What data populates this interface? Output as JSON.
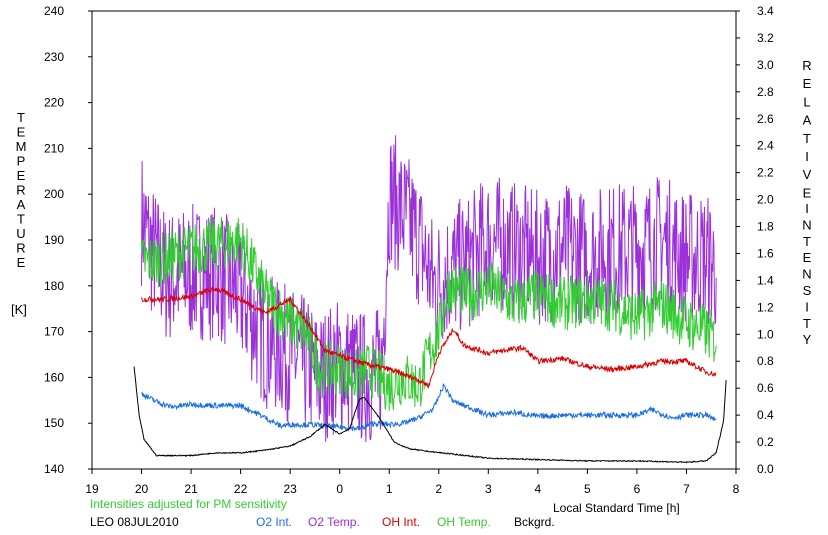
{
  "chart_data": {
    "type": "line",
    "title": "",
    "left_axis": {
      "label_letters": [
        "T",
        "E",
        "M",
        "P",
        "E",
        "R",
        "A",
        "T",
        "U",
        "R",
        "E"
      ],
      "unit": "[K]",
      "ylim": [
        140,
        240
      ],
      "ticks": [
        140,
        150,
        160,
        170,
        180,
        190,
        200,
        210,
        220,
        230,
        240
      ]
    },
    "right_axis": {
      "label_top_letters": [
        "R",
        "E",
        "L",
        "A",
        "T",
        "I",
        "V",
        "E"
      ],
      "label_bottom_letters": [
        "I",
        "N",
        "T",
        "E",
        "N",
        "S",
        "I",
        "T",
        "Y"
      ],
      "ylim": [
        0.0,
        3.4
      ],
      "ticks": [
        "0.0",
        "0.2",
        "0.4",
        "0.6",
        "0.8",
        "1.0",
        "1.2",
        "1.4",
        "1.6",
        "1.8",
        "2.0",
        "2.2",
        "2.4",
        "2.6",
        "2.8",
        "3.0",
        "3.2",
        "3.4"
      ]
    },
    "x_axis": {
      "label": "Local Standard Time [h]",
      "range": [
        19,
        32
      ],
      "ticks": [
        19,
        20,
        21,
        22,
        23,
        24,
        25,
        26,
        27,
        28,
        29,
        30,
        31,
        32
      ],
      "tick_labels": [
        "19",
        "20",
        "21",
        "22",
        "23",
        "0",
        "1",
        "2",
        "3",
        "4",
        "5",
        "6",
        "7",
        "8"
      ]
    },
    "note": "Intensities adjusted for PM sensitivity",
    "station": "LEO 08JUL2010",
    "series": [
      {
        "name": "O2 Int.",
        "axis": "right",
        "color": "#1a6fdf",
        "noise": 0.02,
        "points": [
          [
            20.0,
            0.56
          ],
          [
            20.3,
            0.5
          ],
          [
            20.6,
            0.46
          ],
          [
            21.0,
            0.48
          ],
          [
            21.5,
            0.47
          ],
          [
            22.0,
            0.47
          ],
          [
            22.4,
            0.4
          ],
          [
            22.8,
            0.32
          ],
          [
            23.0,
            0.33
          ],
          [
            23.4,
            0.33
          ],
          [
            23.7,
            0.32
          ],
          [
            24.0,
            0.31
          ],
          [
            24.4,
            0.3
          ],
          [
            24.7,
            0.34
          ],
          [
            25.0,
            0.33
          ],
          [
            25.3,
            0.34
          ],
          [
            25.6,
            0.38
          ],
          [
            25.9,
            0.45
          ],
          [
            26.1,
            0.62
          ],
          [
            26.3,
            0.5
          ],
          [
            26.6,
            0.46
          ],
          [
            27.0,
            0.4
          ],
          [
            27.5,
            0.42
          ],
          [
            28.0,
            0.39
          ],
          [
            28.5,
            0.4
          ],
          [
            29.0,
            0.4
          ],
          [
            29.5,
            0.4
          ],
          [
            30.0,
            0.4
          ],
          [
            30.3,
            0.44
          ],
          [
            30.7,
            0.38
          ],
          [
            31.0,
            0.4
          ],
          [
            31.4,
            0.4
          ],
          [
            31.6,
            0.36
          ]
        ]
      },
      {
        "name": "O2 Temp.",
        "axis": "left",
        "color": "#9b30d9",
        "noise": 15,
        "points": [
          [
            20.0,
            195
          ],
          [
            20.2,
            188
          ],
          [
            20.5,
            182
          ],
          [
            21.0,
            183
          ],
          [
            21.5,
            183
          ],
          [
            22.0,
            178
          ],
          [
            22.5,
            168
          ],
          [
            23.0,
            165
          ],
          [
            23.3,
            163
          ],
          [
            23.6,
            160
          ],
          [
            24.0,
            163
          ],
          [
            24.4,
            160
          ],
          [
            24.7,
            160
          ],
          [
            24.85,
            162
          ],
          [
            25.0,
            200
          ],
          [
            25.2,
            197
          ],
          [
            25.6,
            190
          ],
          [
            25.9,
            180
          ],
          [
            26.2,
            183
          ],
          [
            26.6,
            185
          ],
          [
            27.0,
            190
          ],
          [
            27.5,
            188
          ],
          [
            28.0,
            186
          ],
          [
            28.5,
            188
          ],
          [
            29.0,
            186
          ],
          [
            29.5,
            188
          ],
          [
            30.0,
            188
          ],
          [
            30.5,
            190
          ],
          [
            31.0,
            186
          ],
          [
            31.4,
            186
          ],
          [
            31.6,
            184
          ]
        ]
      },
      {
        "name": "OH Int.",
        "axis": "right",
        "color": "#dd0000",
        "noise": 0.02,
        "points": [
          [
            20.0,
            1.26
          ],
          [
            20.5,
            1.26
          ],
          [
            21.0,
            1.28
          ],
          [
            21.5,
            1.34
          ],
          [
            22.0,
            1.26
          ],
          [
            22.5,
            1.16
          ],
          [
            23.0,
            1.26
          ],
          [
            23.4,
            1.06
          ],
          [
            23.7,
            0.88
          ],
          [
            24.0,
            0.84
          ],
          [
            24.5,
            0.78
          ],
          [
            25.0,
            0.74
          ],
          [
            25.3,
            0.7
          ],
          [
            25.6,
            0.66
          ],
          [
            25.8,
            0.62
          ],
          [
            26.0,
            0.86
          ],
          [
            26.3,
            1.04
          ],
          [
            26.5,
            0.92
          ],
          [
            27.0,
            0.86
          ],
          [
            27.3,
            0.88
          ],
          [
            27.7,
            0.9
          ],
          [
            28.0,
            0.8
          ],
          [
            28.5,
            0.82
          ],
          [
            29.0,
            0.76
          ],
          [
            29.5,
            0.74
          ],
          [
            30.0,
            0.76
          ],
          [
            30.5,
            0.8
          ],
          [
            31.0,
            0.8
          ],
          [
            31.4,
            0.72
          ],
          [
            31.6,
            0.7
          ]
        ]
      },
      {
        "name": "OH Temp.",
        "axis": "left",
        "color": "#33cc33",
        "noise": 6,
        "points": [
          [
            20.0,
            185
          ],
          [
            20.5,
            186
          ],
          [
            21.0,
            188
          ],
          [
            21.5,
            189
          ],
          [
            22.0,
            190
          ],
          [
            22.5,
            178
          ],
          [
            23.0,
            172
          ],
          [
            23.3,
            170
          ],
          [
            23.6,
            162
          ],
          [
            24.0,
            162
          ],
          [
            24.3,
            160
          ],
          [
            24.6,
            162
          ],
          [
            25.0,
            158
          ],
          [
            25.3,
            160
          ],
          [
            25.6,
            158
          ],
          [
            25.8,
            165
          ],
          [
            26.0,
            170
          ],
          [
            26.2,
            180
          ],
          [
            26.6,
            178
          ],
          [
            27.0,
            180
          ],
          [
            27.5,
            176
          ],
          [
            28.0,
            178
          ],
          [
            28.5,
            176
          ],
          [
            29.0,
            177
          ],
          [
            29.5,
            176
          ],
          [
            30.0,
            173
          ],
          [
            30.5,
            176
          ],
          [
            31.0,
            172
          ],
          [
            31.4,
            170
          ],
          [
            31.6,
            168
          ]
        ]
      },
      {
        "name": "Bckgrd.",
        "axis": "right",
        "color": "#000000",
        "noise": 0.004,
        "points": [
          [
            19.85,
            0.76
          ],
          [
            19.95,
            0.4
          ],
          [
            20.05,
            0.22
          ],
          [
            20.3,
            0.1
          ],
          [
            21.0,
            0.1
          ],
          [
            21.5,
            0.12
          ],
          [
            22.0,
            0.12
          ],
          [
            22.5,
            0.14
          ],
          [
            23.0,
            0.17
          ],
          [
            23.4,
            0.24
          ],
          [
            23.7,
            0.33
          ],
          [
            24.0,
            0.26
          ],
          [
            24.2,
            0.3
          ],
          [
            24.4,
            0.52
          ],
          [
            24.5,
            0.53
          ],
          [
            24.8,
            0.38
          ],
          [
            25.1,
            0.2
          ],
          [
            25.4,
            0.15
          ],
          [
            25.8,
            0.13
          ],
          [
            26.3,
            0.11
          ],
          [
            27.0,
            0.08
          ],
          [
            28.0,
            0.07
          ],
          [
            29.0,
            0.06
          ],
          [
            30.0,
            0.06
          ],
          [
            31.0,
            0.05
          ],
          [
            31.4,
            0.06
          ],
          [
            31.6,
            0.12
          ],
          [
            31.75,
            0.36
          ],
          [
            31.8,
            0.66
          ]
        ]
      }
    ]
  }
}
